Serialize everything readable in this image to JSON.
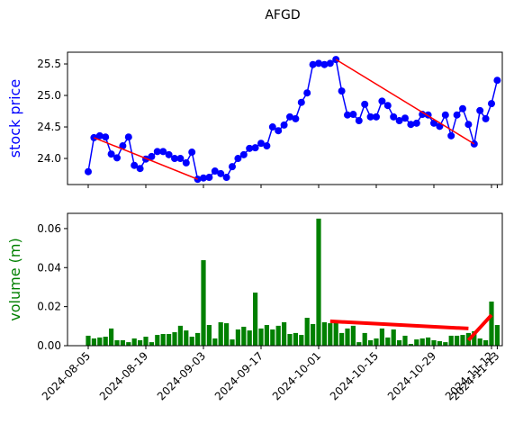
{
  "chart_data": [
    {
      "type": "line",
      "title": "AFGD",
      "ylabel": "stock price",
      "color": "#0000ff",
      "ylabel_color": "#0000ff",
      "x": [
        "2024-08-05",
        "2024-08-06",
        "2024-08-07",
        "2024-08-08",
        "2024-08-09",
        "2024-08-12",
        "2024-08-13",
        "2024-08-14",
        "2024-08-15",
        "2024-08-16",
        "2024-08-19",
        "2024-08-20",
        "2024-08-21",
        "2024-08-22",
        "2024-08-23",
        "2024-08-26",
        "2024-08-27",
        "2024-08-28",
        "2024-08-29",
        "2024-08-30",
        "2024-09-03",
        "2024-09-04",
        "2024-09-05",
        "2024-09-06",
        "2024-09-09",
        "2024-09-10",
        "2024-09-11",
        "2024-09-12",
        "2024-09-13",
        "2024-09-16",
        "2024-09-17",
        "2024-09-18",
        "2024-09-19",
        "2024-09-20",
        "2024-09-23",
        "2024-09-24",
        "2024-09-25",
        "2024-09-26",
        "2024-09-27",
        "2024-09-30",
        "2024-10-01",
        "2024-10-02",
        "2024-10-03",
        "2024-10-04",
        "2024-10-07",
        "2024-10-08",
        "2024-10-09",
        "2024-10-10",
        "2024-10-11",
        "2024-10-14",
        "2024-10-15",
        "2024-10-16",
        "2024-10-17",
        "2024-10-18",
        "2024-10-21",
        "2024-10-22",
        "2024-10-23",
        "2024-10-24",
        "2024-10-25",
        "2024-10-28",
        "2024-10-29",
        "2024-10-30",
        "2024-10-31",
        "2024-11-01",
        "2024-11-04",
        "2024-11-05",
        "2024-11-06",
        "2024-11-07",
        "2024-11-08",
        "2024-11-11",
        "2024-11-12",
        "2024-11-13"
      ],
      "values": [
        23.79,
        24.33,
        24.36,
        24.34,
        24.07,
        24.01,
        24.2,
        24.34,
        23.89,
        23.84,
        23.99,
        24.03,
        24.11,
        24.11,
        24.06,
        24.0,
        24.0,
        23.93,
        24.1,
        23.67,
        23.69,
        23.7,
        23.8,
        23.76,
        23.7,
        23.87,
        24.0,
        24.06,
        24.16,
        24.17,
        24.24,
        24.2,
        24.5,
        24.44,
        24.53,
        24.66,
        24.63,
        24.89,
        25.04,
        25.49,
        25.51,
        25.49,
        25.51,
        25.57,
        25.07,
        24.69,
        24.7,
        24.6,
        24.86,
        24.66,
        24.66,
        24.91,
        24.84,
        24.66,
        24.6,
        24.64,
        24.54,
        24.56,
        24.7,
        24.69,
        24.56,
        24.51,
        24.69,
        24.36,
        24.69,
        24.79,
        24.54,
        24.23,
        24.76,
        24.63,
        24.87,
        25.24
      ],
      "trend_lines": [
        {
          "x": [
            "2024-08-06",
            "2024-08-30"
          ],
          "values": [
            24.33,
            23.67
          ],
          "color": "#ff0000"
        },
        {
          "x": [
            "2024-10-04",
            "2024-11-07"
          ],
          "values": [
            25.57,
            24.23
          ],
          "color": "#ff0000"
        }
      ],
      "ylim": [
        23.586,
        25.686
      ],
      "yticks": [
        {
          "value": 24.0,
          "label": "24.0"
        },
        24.5,
        {
          "value": 25.0,
          "label": "25.0"
        },
        25.5
      ]
    },
    {
      "type": "bar",
      "ylabel": "volume (m)",
      "color": "#008000",
      "ylabel_color": "#008000",
      "x": [
        "2024-08-05",
        "2024-08-06",
        "2024-08-07",
        "2024-08-08",
        "2024-08-09",
        "2024-08-12",
        "2024-08-13",
        "2024-08-14",
        "2024-08-15",
        "2024-08-16",
        "2024-08-19",
        "2024-08-20",
        "2024-08-21",
        "2024-08-22",
        "2024-08-23",
        "2024-08-26",
        "2024-08-27",
        "2024-08-28",
        "2024-08-29",
        "2024-08-30",
        "2024-09-03",
        "2024-09-04",
        "2024-09-05",
        "2024-09-06",
        "2024-09-09",
        "2024-09-10",
        "2024-09-11",
        "2024-09-12",
        "2024-09-13",
        "2024-09-16",
        "2024-09-17",
        "2024-09-18",
        "2024-09-19",
        "2024-09-20",
        "2024-09-23",
        "2024-09-24",
        "2024-09-25",
        "2024-09-26",
        "2024-09-27",
        "2024-09-30",
        "2024-10-01",
        "2024-10-02",
        "2024-10-03",
        "2024-10-04",
        "2024-10-07",
        "2024-10-08",
        "2024-10-09",
        "2024-10-10",
        "2024-10-11",
        "2024-10-14",
        "2024-10-15",
        "2024-10-16",
        "2024-10-17",
        "2024-10-18",
        "2024-10-21",
        "2024-10-22",
        "2024-10-23",
        "2024-10-24",
        "2024-10-25",
        "2024-10-28",
        "2024-10-29",
        "2024-10-30",
        "2024-10-31",
        "2024-11-01",
        "2024-11-04",
        "2024-11-05",
        "2024-11-06",
        "2024-11-07",
        "2024-11-08",
        "2024-11-11",
        "2024-11-12",
        "2024-11-13"
      ],
      "values": [
        0.0051,
        0.0037,
        0.0042,
        0.0046,
        0.0088,
        0.0028,
        0.0028,
        0.0018,
        0.0037,
        0.0028,
        0.0046,
        0.0018,
        0.0055,
        0.006,
        0.006,
        0.0069,
        0.0102,
        0.0078,
        0.0046,
        0.0065,
        0.0438,
        0.0106,
        0.0037,
        0.012,
        0.0115,
        0.0032,
        0.0083,
        0.0097,
        0.0078,
        0.0272,
        0.0088,
        0.0106,
        0.0083,
        0.0102,
        0.012,
        0.006,
        0.0065,
        0.0055,
        0.0143,
        0.0111,
        0.0651,
        0.012,
        0.0115,
        0.012,
        0.0065,
        0.0088,
        0.0102,
        0.0018,
        0.0065,
        0.0028,
        0.0037,
        0.0088,
        0.0042,
        0.0083,
        0.0028,
        0.0051,
        0.0009,
        0.0032,
        0.0037,
        0.0042,
        0.0028,
        0.0023,
        0.0018,
        0.0051,
        0.0051,
        0.0055,
        0.0065,
        0.0074,
        0.0037,
        0.0028,
        0.0226,
        0.0106
      ],
      "trend_lines": [
        {
          "x": [
            "2024-10-03",
            "2024-11-06"
          ],
          "values": [
            0.0125,
            0.0088
          ],
          "color": "#ff0000"
        },
        {
          "x": [
            "2024-11-06",
            "2024-11-12"
          ],
          "values": [
            0.0028,
            0.0157
          ],
          "color": "#ff0000"
        }
      ],
      "ylim": [
        0,
        0.0678
      ],
      "yticks": [
        {
          "value": 0,
          "label": "0.00"
        },
        {
          "value": 0.02,
          "label": "0.02"
        },
        {
          "value": 0.04,
          "label": "0.04"
        },
        {
          "value": 0.06,
          "label": "0.06"
        }
      ],
      "xticks": [
        "2024-08-05",
        "2024-08-19",
        "2024-09-03",
        "2024-09-17",
        "2024-10-01",
        "2024-10-15",
        "2024-10-29",
        "2024-11-12",
        "2024-11-13"
      ]
    }
  ]
}
